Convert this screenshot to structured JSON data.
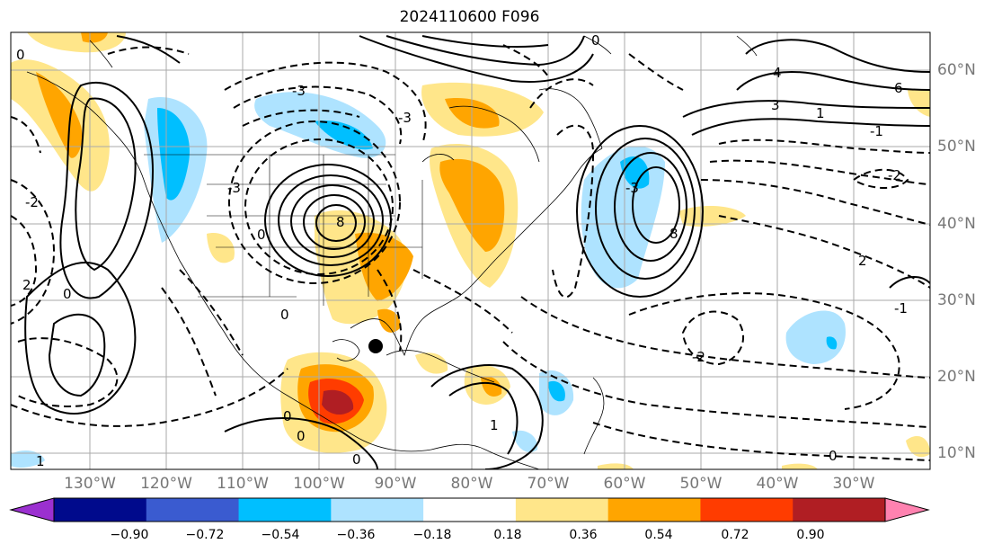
{
  "title": "2024110600 F096",
  "lon_labels": [
    "130°W",
    "120°W",
    "110°W",
    "100°W",
    "90°W",
    "80°W",
    "70°W",
    "60°W",
    "50°W",
    "40°W",
    "30°W"
  ],
  "lat_labels": [
    "60°N",
    "50°N",
    "40°N",
    "30°N",
    "20°N",
    "10°N"
  ],
  "colorbar": {
    "tick_labels": [
      "−0.90",
      "−0.72",
      "−0.54",
      "−0.36",
      "−0.18",
      "0.18",
      "0.36",
      "0.54",
      "0.72",
      "0.90"
    ],
    "colors": [
      "#9b30d0",
      "#000a8c",
      "#3a5bd0",
      "#00bfff",
      "#aee3ff",
      "#ffffff",
      "#ffe68a",
      "#ffa500",
      "#ff3c00",
      "#b01e23",
      "#ff82b0"
    ]
  },
  "contour_labels": [
    "0",
    "0",
    "0",
    "0",
    "0",
    "0",
    "0",
    "0",
    "0",
    "3",
    "4",
    "6",
    "8",
    "8",
    "-3",
    "-3",
    "-3",
    "-3",
    "-2",
    "-2",
    "-2",
    "-1",
    "-1",
    "1",
    "1",
    "1",
    "2",
    "2"
  ],
  "shading_colors": {
    "light_yellow": "#ffe68a",
    "orange": "#ffa500",
    "red": "#ff3c00",
    "dark_red": "#b01e23",
    "light_blue": "#aee3ff",
    "blue": "#00bfff"
  }
}
